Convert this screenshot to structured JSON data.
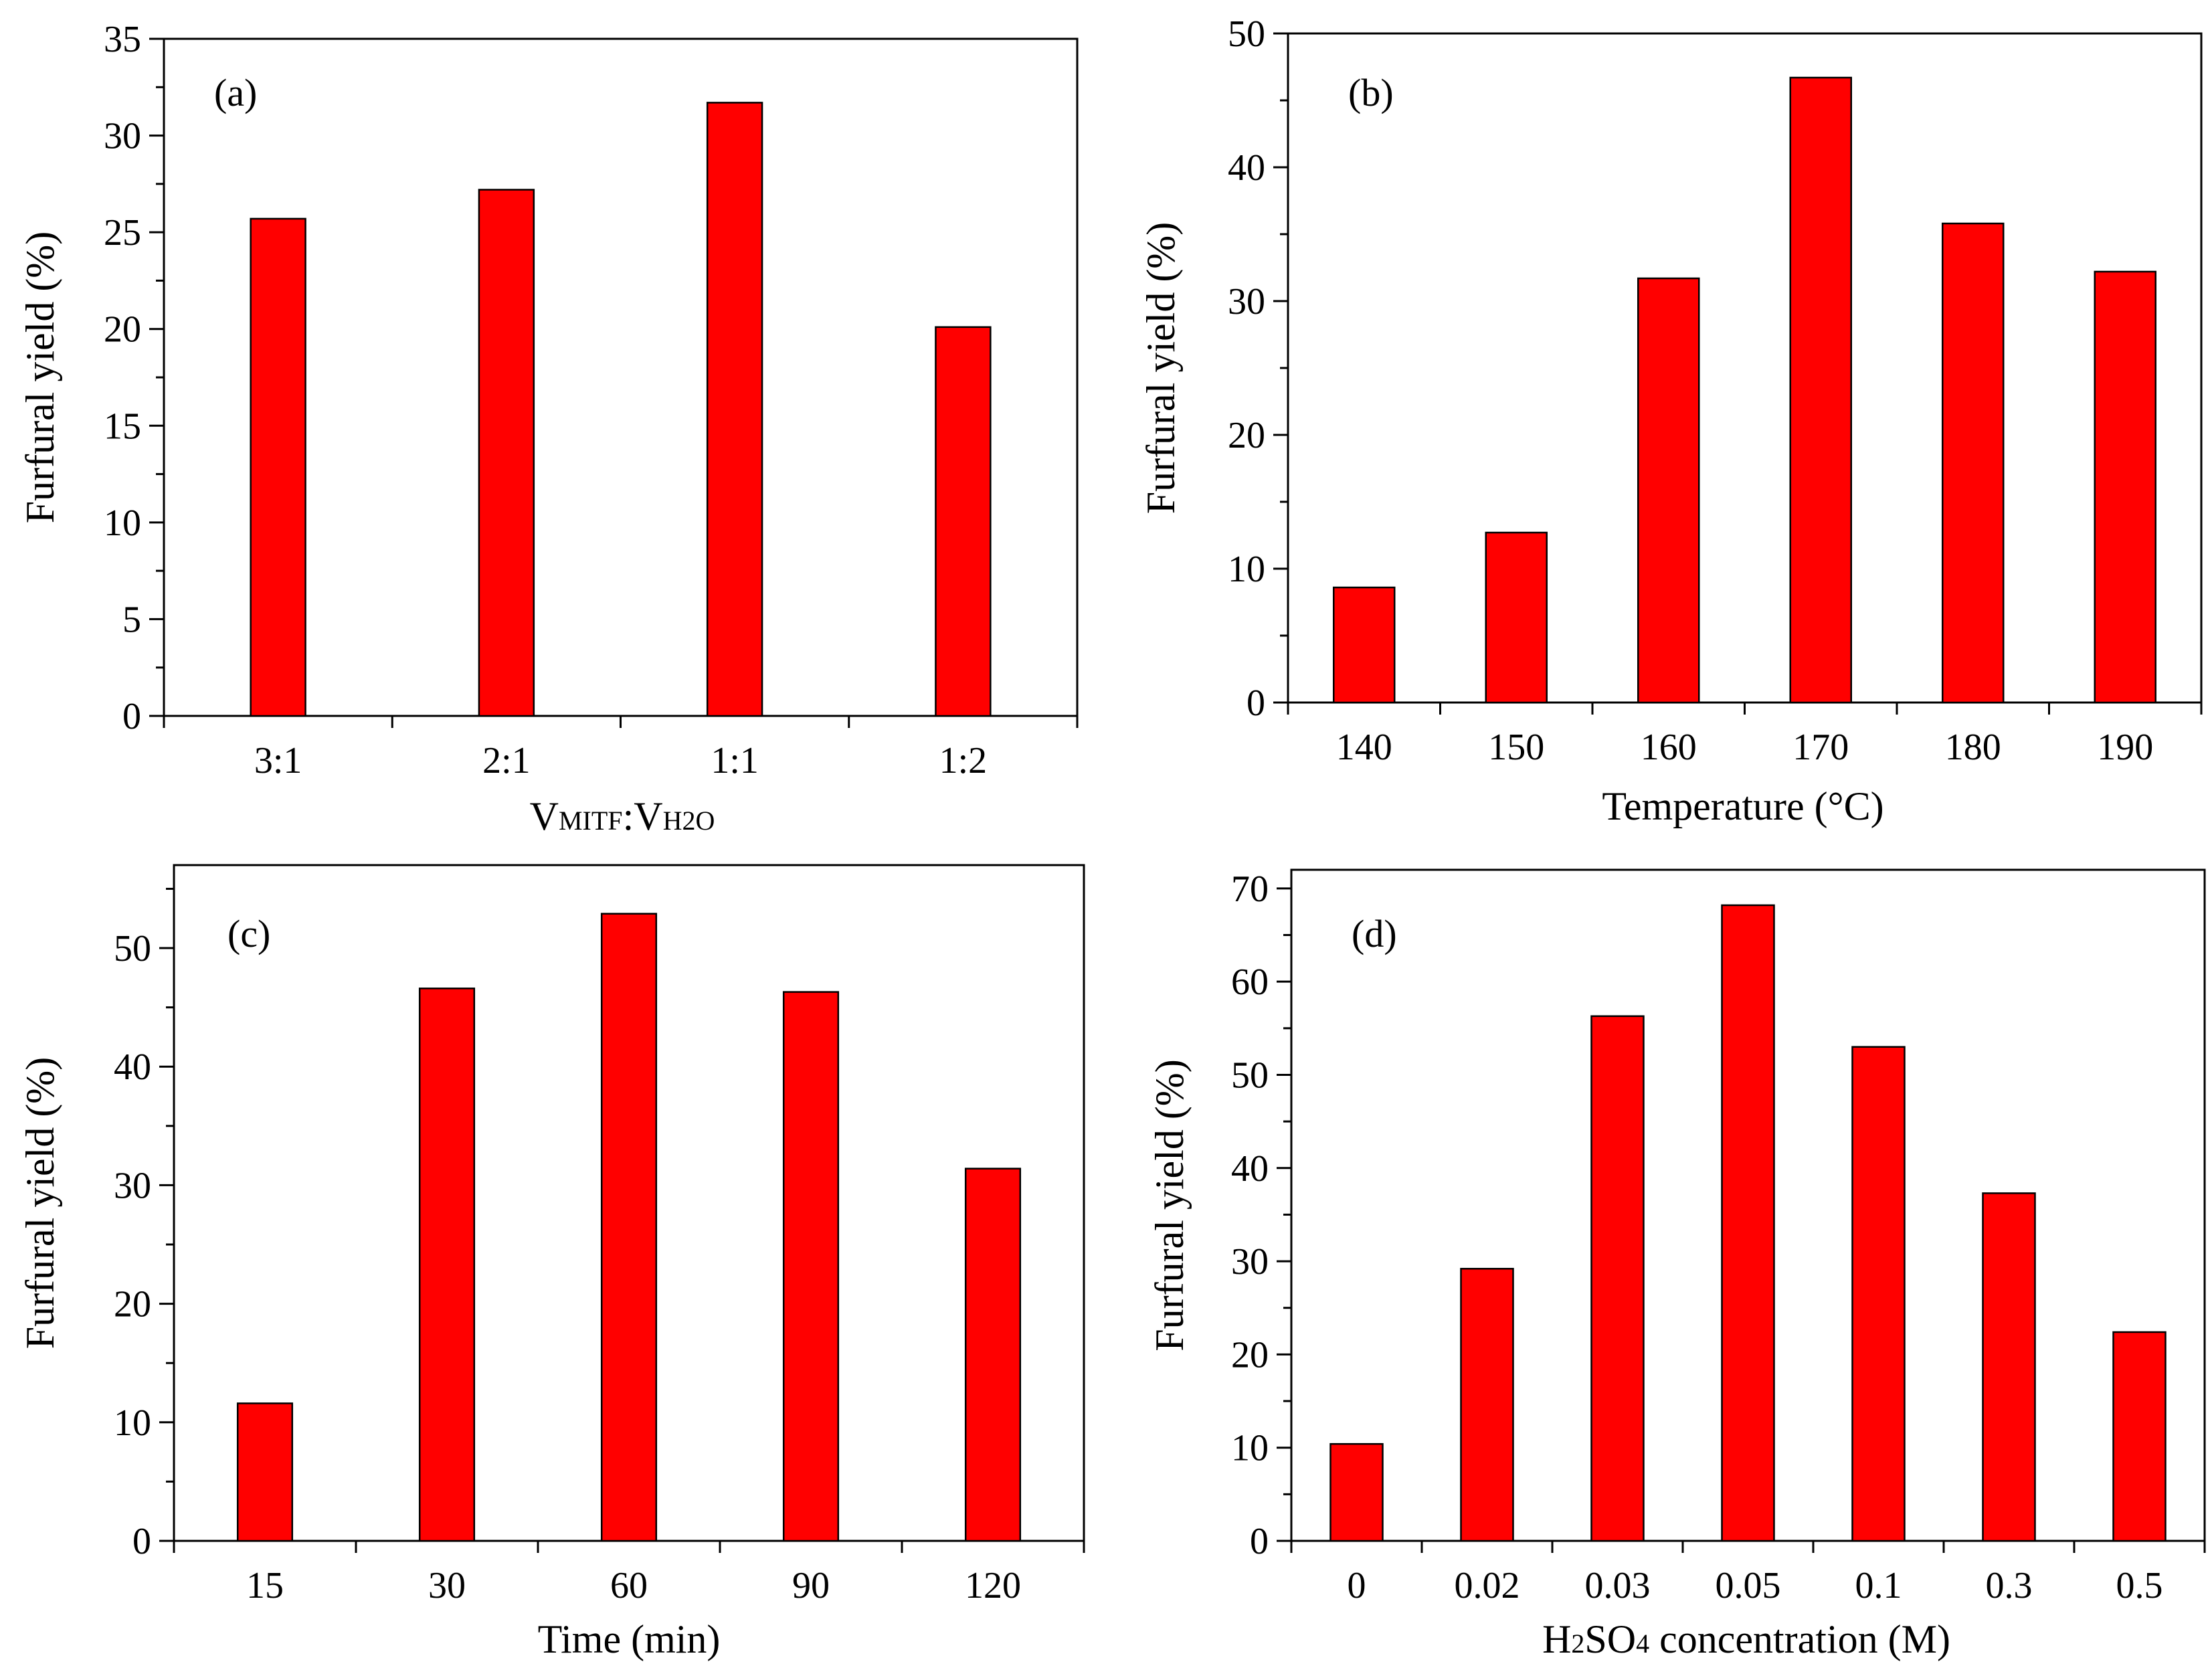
{
  "colors": {
    "bar": "#ff0000",
    "bar_stroke": "#000000",
    "axis": "#000000",
    "background": "#ffffff"
  },
  "chart_data": [
    {
      "type": "bar",
      "panel_label": "(a)",
      "categories": [
        "3:1",
        "2:1",
        "1:1",
        "1:2"
      ],
      "values": [
        25.7,
        27.2,
        31.7,
        20.1
      ],
      "xlabel": {
        "main1": "V",
        "sub1": "MITF",
        "colon": ":",
        "main2": "V",
        "sub2": "H2O"
      },
      "ylabel": "Furfural yield (%)",
      "ylim": [
        0,
        35
      ],
      "yticks": [
        0,
        5,
        10,
        15,
        20,
        25,
        30,
        35
      ],
      "ytick_labels": [
        "0",
        "5",
        "10",
        "15",
        "20",
        "25",
        "30",
        "35"
      ],
      "grid": false
    },
    {
      "type": "bar",
      "panel_label": "(b)",
      "categories": [
        "140",
        "150",
        "160",
        "170",
        "180",
        "190"
      ],
      "values": [
        8.6,
        12.7,
        31.7,
        46.7,
        35.8,
        32.2
      ],
      "xlabel": "Temperature (°C)",
      "ylabel": "Furfural yield (%)",
      "ylim": [
        0,
        50
      ],
      "yticks": [
        0,
        10,
        20,
        30,
        40,
        50
      ],
      "ytick_labels": [
        "0",
        "10",
        "20",
        "30",
        "40",
        "50"
      ],
      "grid": false
    },
    {
      "type": "bar",
      "panel_label": "(c)",
      "categories": [
        "15",
        "30",
        "60",
        "90",
        "120"
      ],
      "values": [
        11.6,
        46.6,
        52.9,
        46.3,
        31.4
      ],
      "xlabel": "Time (min)",
      "ylabel": "Furfural yield (%)",
      "ylim": [
        0,
        57
      ],
      "yticks": [
        0,
        10,
        20,
        30,
        40,
        50
      ],
      "ytick_labels": [
        "0",
        "10",
        "20",
        "30",
        "40",
        "50"
      ],
      "grid": false
    },
    {
      "type": "bar",
      "panel_label": "(d)",
      "categories": [
        "0",
        "0.02",
        "0.03",
        "0.05",
        "0.1",
        "0.3",
        "0.5"
      ],
      "values": [
        10.4,
        29.2,
        56.3,
        68.2,
        53.0,
        37.3,
        22.4
      ],
      "xlabel": {
        "main1": "H",
        "sub1": "2",
        "main2": "SO",
        "sub2": "4",
        "rest": " concentration (M)"
      },
      "ylabel": "Furfural yield (%)",
      "ylim": [
        0,
        72
      ],
      "yticks": [
        0,
        10,
        20,
        30,
        40,
        50,
        60,
        70
      ],
      "ytick_labels": [
        "0",
        "10",
        "20",
        "30",
        "40",
        "50",
        "60",
        "70"
      ],
      "grid": false
    }
  ]
}
